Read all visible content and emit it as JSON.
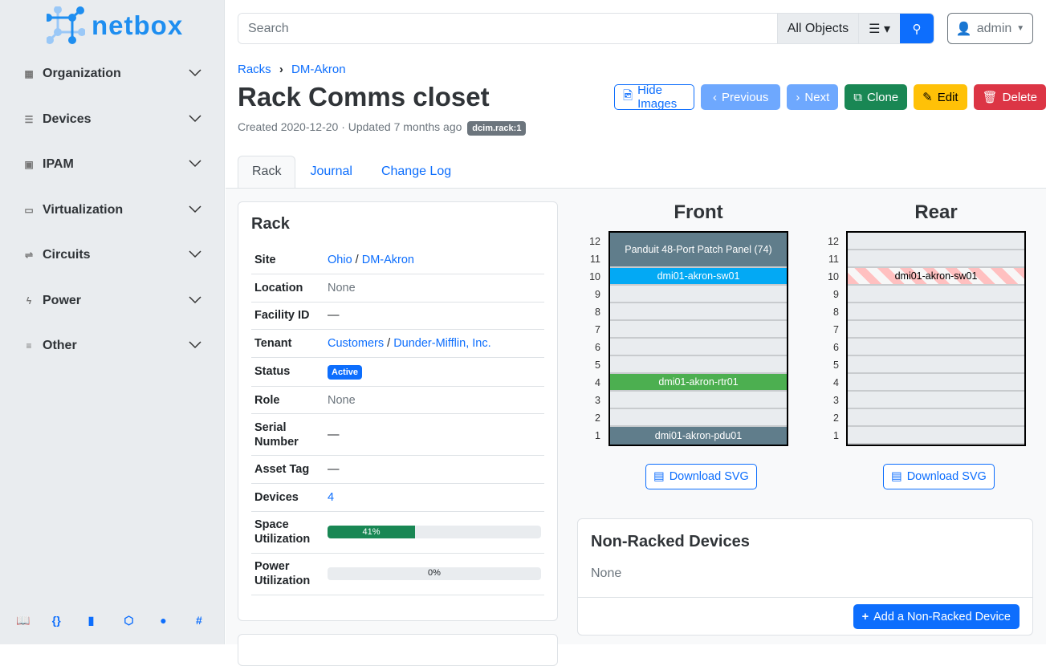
{
  "brand": {
    "name": "netbox",
    "color": "#1e8ef0"
  },
  "sidebar": {
    "items": [
      {
        "label": "Organization",
        "icon": "domain-icon"
      },
      {
        "label": "Devices",
        "icon": "server-icon"
      },
      {
        "label": "IPAM",
        "icon": "counter-icon"
      },
      {
        "label": "Virtualization",
        "icon": "monitor-icon"
      },
      {
        "label": "Circuits",
        "icon": "transit-icon"
      },
      {
        "label": "Power",
        "icon": "flash-icon"
      },
      {
        "label": "Other",
        "icon": "notes-icon"
      }
    ],
    "footer_icons": [
      "book-icon",
      "api-braces-icon",
      "bookmark-icon",
      "graphql-icon",
      "github-icon",
      "slack-icon"
    ]
  },
  "search": {
    "placeholder": "Search",
    "scope": "All Objects"
  },
  "user": {
    "label": "admin"
  },
  "breadcrumb": [
    "Racks",
    "DM-Akron"
  ],
  "page": {
    "title": "Rack Comms closet",
    "meta": "Created 2020-12-20 · Updated 7 months ago",
    "tag": "dcim.rack:1"
  },
  "actions": {
    "hide_images": "Hide Images",
    "previous": "Previous",
    "next": "Next",
    "clone": "Clone",
    "edit": "Edit",
    "delete": "Delete"
  },
  "tabs": [
    {
      "label": "Rack",
      "active": true
    },
    {
      "label": "Journal"
    },
    {
      "label": "Change Log"
    }
  ],
  "rack_card": {
    "title": "Rack",
    "rows": [
      {
        "key": "Site",
        "links": [
          "Ohio",
          "DM-Akron"
        ]
      },
      {
        "key": "Location",
        "value": "None",
        "muted": true
      },
      {
        "key": "Facility ID",
        "value": "—"
      },
      {
        "key": "Tenant",
        "links": [
          "Customers",
          "Dunder-Mifflin, Inc."
        ]
      },
      {
        "key": "Status",
        "badge": "Active"
      },
      {
        "key": "Role",
        "value": "None",
        "muted": true
      },
      {
        "key": "Serial Number",
        "value": "—"
      },
      {
        "key": "Asset Tag",
        "value": "—"
      },
      {
        "key": "Devices",
        "link": "4"
      },
      {
        "key": "Space Utilization",
        "progress": 41,
        "progress_label": "41%"
      },
      {
        "key": "Power Utilization",
        "progress": 0,
        "progress_label": "0%"
      }
    ]
  },
  "elevations": {
    "front": {
      "title": "Front",
      "units": 12,
      "devices": [
        {
          "name": "Panduit 48-Port Patch Panel (74)",
          "position": 11,
          "height": 2,
          "color": "#607d8b"
        },
        {
          "name": "dmi01-akron-sw01",
          "position": 10,
          "height": 1,
          "color": "#03a9f4"
        },
        {
          "name": "dmi01-akron-rtr01",
          "position": 4,
          "height": 1,
          "color": "#4caf50"
        },
        {
          "name": "dmi01-akron-pdu01",
          "position": 1,
          "height": 1,
          "color": "#607d8b"
        }
      ]
    },
    "rear": {
      "title": "Rear",
      "units": 12,
      "devices": [
        {
          "name": "dmi01-akron-sw01",
          "position": 10,
          "height": 1,
          "occupied_from_front": true
        }
      ]
    },
    "download_label": "Download SVG"
  },
  "non_racked": {
    "title": "Non-Racked Devices",
    "value": "None",
    "add_label": "Add a Non-Racked Device"
  }
}
